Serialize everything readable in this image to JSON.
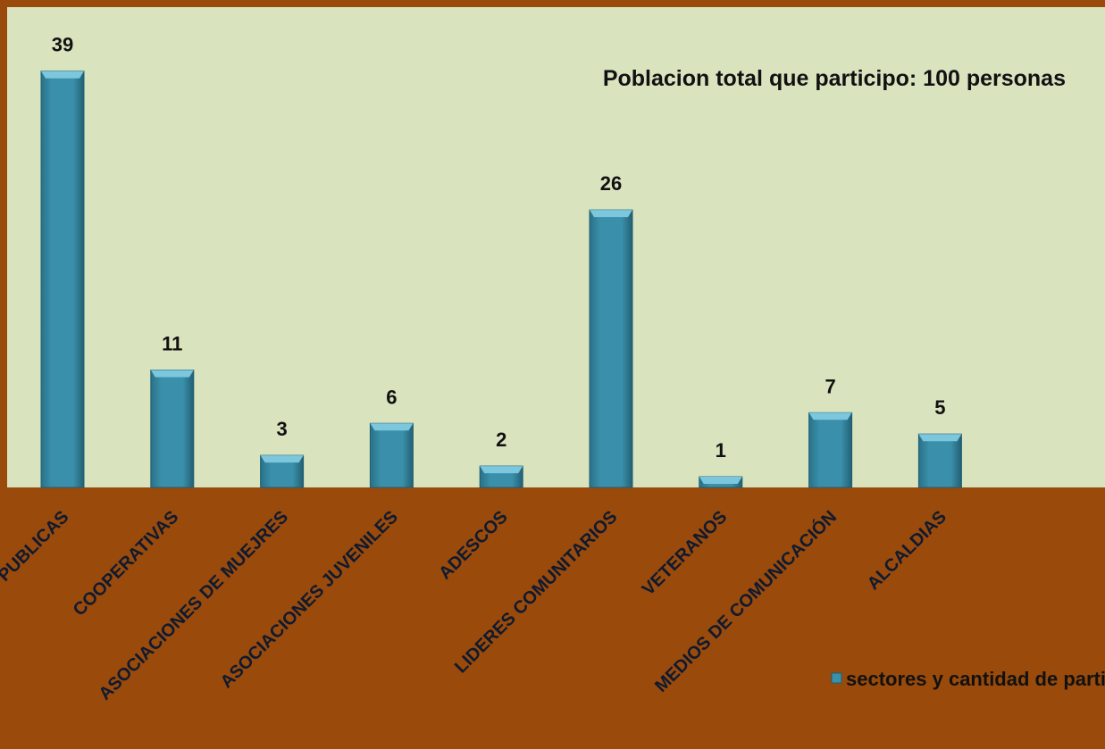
{
  "chart_data": {
    "type": "bar",
    "annotation": "Poblacion total que participo: 100 personas",
    "categories": [
      "INSTITUCIONES PUBLICAS",
      "COOPERATIVAS",
      "ASOCIACIONES DE MUEJRES",
      "ASOCIACIONES JUVENILES",
      "ADESCOS",
      "LIDERES COMUNITARIOS",
      "VETERANOS",
      "MEDIOS DE COMUNICACIÓN",
      "ALCALDIAS"
    ],
    "series": [
      {
        "name": "sectores y cantidad de participantes",
        "values": [
          39,
          11,
          3,
          6,
          2,
          26,
          1,
          7,
          5
        ]
      }
    ],
    "ylim": [
      0,
      45
    ],
    "grid": false,
    "legend_position": "bottom-right",
    "colors": {
      "plot_background": "#d9e4bf",
      "bar": "#35869f",
      "bar_light": "#6fc2da",
      "bar_dark": "#1f5f72",
      "frame": "#9a4a0a",
      "text_dark": "#111111"
    }
  }
}
